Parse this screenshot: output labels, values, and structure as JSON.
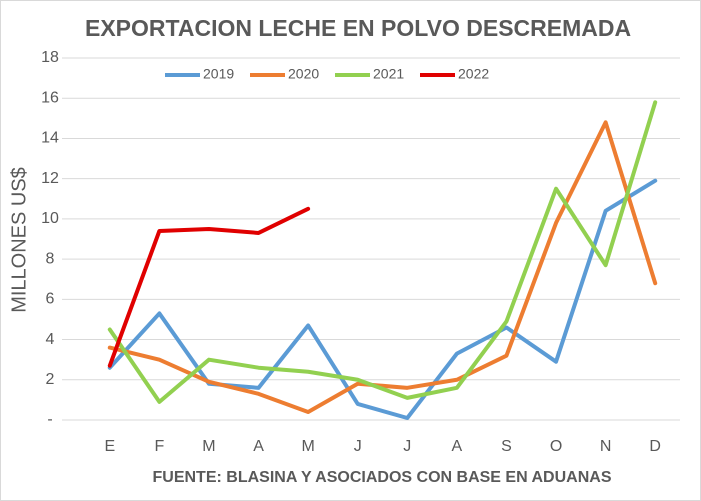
{
  "chart_data": {
    "type": "line",
    "title": "EXPORTACION LECHE EN POLVO DESCREMADA",
    "x_label": "FUENTE: BLASINA Y ASOCIADOS CON BASE EN ADUANAS",
    "y_label": "MILLONES US$",
    "categories": [
      "E",
      "F",
      "M",
      "A",
      "M",
      "J",
      "J",
      "A",
      "S",
      "O",
      "N",
      "D"
    ],
    "series": [
      {
        "name": "2019",
        "color": "#5b9bd5",
        "values": [
          2.6,
          5.3,
          1.8,
          1.6,
          4.7,
          0.8,
          0.1,
          3.3,
          4.6,
          2.9,
          10.4,
          11.9
        ]
      },
      {
        "name": "2020",
        "color": "#ed7d31",
        "values": [
          3.6,
          3.0,
          1.9,
          1.3,
          0.4,
          1.8,
          1.6,
          2.0,
          3.2,
          9.8,
          14.8,
          6.8
        ]
      },
      {
        "name": "2021",
        "color": "#92d050",
        "values": [
          4.5,
          0.9,
          3.0,
          2.6,
          2.4,
          2.0,
          1.1,
          1.6,
          4.9,
          11.5,
          7.7,
          15.8
        ]
      },
      {
        "name": "2022",
        "color": "#e00000",
        "values": [
          2.7,
          9.4,
          9.5,
          9.3,
          10.5,
          null,
          null,
          null,
          null,
          null,
          null,
          null
        ]
      }
    ],
    "ylim": [
      0,
      18
    ],
    "yticks": [
      {
        "value": 0,
        "label": "-"
      },
      2,
      4,
      6,
      8,
      10,
      12,
      14,
      16,
      18
    ],
    "grid": true,
    "legend": "top"
  }
}
